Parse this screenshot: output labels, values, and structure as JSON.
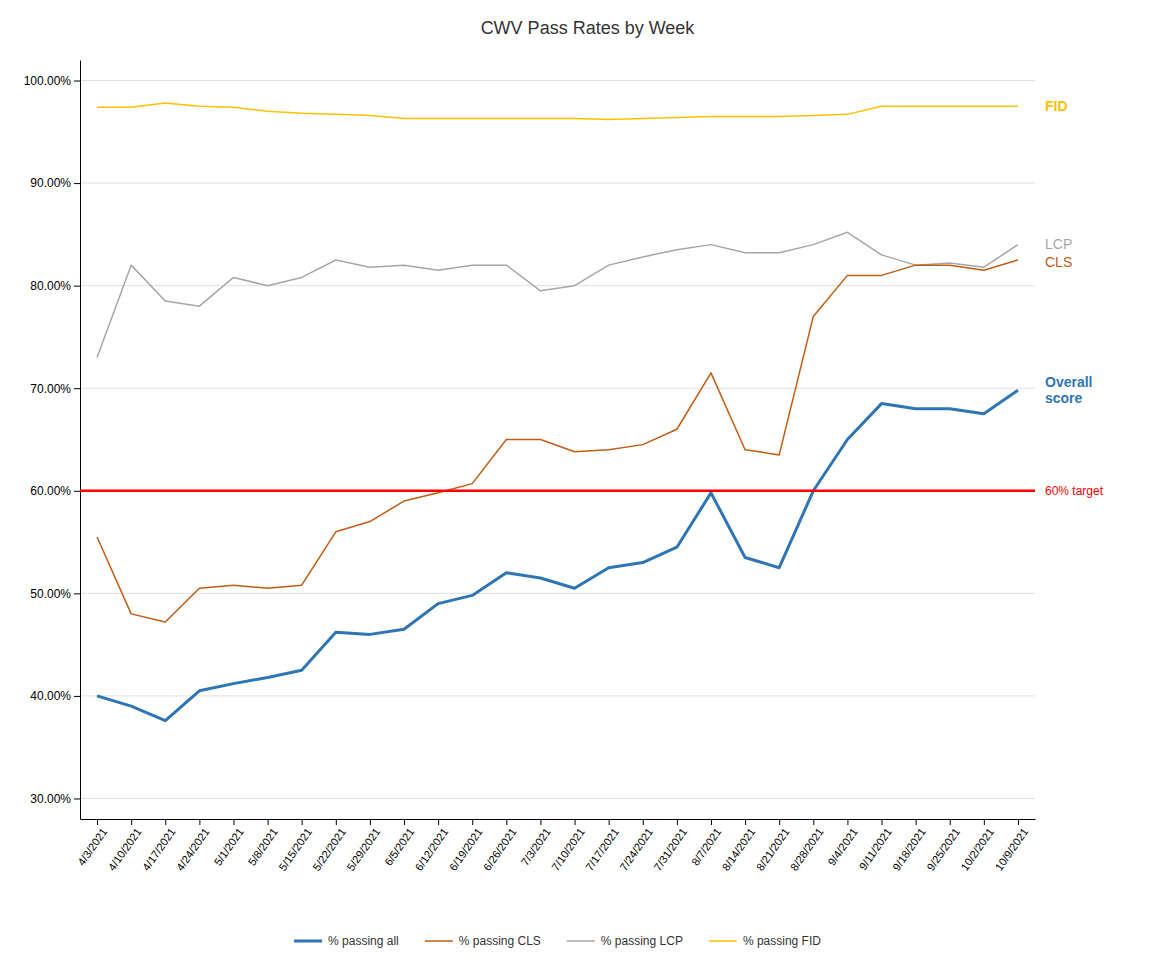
{
  "chart_data": {
    "type": "line",
    "title": "CWV Pass Rates by Week",
    "x": [
      "4/3/2021",
      "4/10/2021",
      "4/17/2021",
      "4/24/2021",
      "5/1/2021",
      "5/8/2021",
      "5/15/2021",
      "5/22/2021",
      "5/29/2021",
      "6/5/2021",
      "6/12/2021",
      "6/19/2021",
      "6/26/2021",
      "7/3/2021",
      "7/10/2021",
      "7/17/2021",
      "7/24/2021",
      "7/31/2021",
      "8/7/2021",
      "8/14/2021",
      "8/21/2021",
      "8/28/2021",
      "9/4/2021",
      "9/11/2021",
      "9/18/2021",
      "9/25/2021",
      "10/2/2021",
      "10/9/2021"
    ],
    "series": [
      {
        "name": "% passing all",
        "color": "#2E75B6",
        "end_label": "Overall\nscore",
        "values": [
          0.4,
          0.39,
          0.376,
          0.405,
          0.412,
          0.418,
          0.425,
          0.462,
          0.46,
          0.465,
          0.49,
          0.498,
          0.52,
          0.515,
          0.505,
          0.525,
          0.53,
          0.545,
          0.598,
          0.535,
          0.525,
          0.6,
          0.65,
          0.685,
          0.68,
          0.68,
          0.675,
          0.698
        ]
      },
      {
        "name": "% passing CLS",
        "color": "#C55A11",
        "end_label": "CLS",
        "values": [
          0.555,
          0.48,
          0.472,
          0.505,
          0.508,
          0.505,
          0.508,
          0.56,
          0.57,
          0.59,
          0.598,
          0.607,
          0.65,
          0.65,
          0.638,
          0.64,
          0.645,
          0.66,
          0.715,
          0.64,
          0.635,
          0.77,
          0.81,
          0.81,
          0.82,
          0.82,
          0.815,
          0.825
        ]
      },
      {
        "name": "% passing LCP",
        "color": "#A6A6A6",
        "end_label": "LCP",
        "values": [
          0.73,
          0.82,
          0.785,
          0.78,
          0.808,
          0.8,
          0.808,
          0.825,
          0.818,
          0.82,
          0.815,
          0.82,
          0.82,
          0.795,
          0.8,
          0.82,
          0.828,
          0.835,
          0.84,
          0.832,
          0.832,
          0.84,
          0.852,
          0.83,
          0.82,
          0.822,
          0.818,
          0.84
        ]
      },
      {
        "name": "% passing FID",
        "color": "#FFC000",
        "end_label": "FID",
        "values": [
          0.974,
          0.974,
          0.978,
          0.975,
          0.974,
          0.97,
          0.968,
          0.967,
          0.966,
          0.963,
          0.963,
          0.963,
          0.963,
          0.963,
          0.963,
          0.962,
          0.963,
          0.964,
          0.965,
          0.965,
          0.965,
          0.966,
          0.967,
          0.975,
          0.975,
          0.975,
          0.975,
          0.975
        ]
      }
    ],
    "reference_lines": [
      {
        "value": 0.6,
        "label": "60% target",
        "color": "#FF0000"
      }
    ],
    "ylim": [
      0.28,
      1.02
    ],
    "yticks": [
      {
        "value": 0.3,
        "label": "30.00%"
      },
      {
        "value": 0.4,
        "label": "40.00%"
      },
      {
        "value": 0.5,
        "label": "50.00%"
      },
      {
        "value": 0.6,
        "label": "60.00%"
      },
      {
        "value": 0.7,
        "label": "70.00%"
      },
      {
        "value": 0.8,
        "label": "80.00%"
      },
      {
        "value": 0.9,
        "label": "90.00%"
      },
      {
        "value": 1.0,
        "label": "100.00%"
      }
    ],
    "grid": true,
    "legend": "bottom"
  }
}
